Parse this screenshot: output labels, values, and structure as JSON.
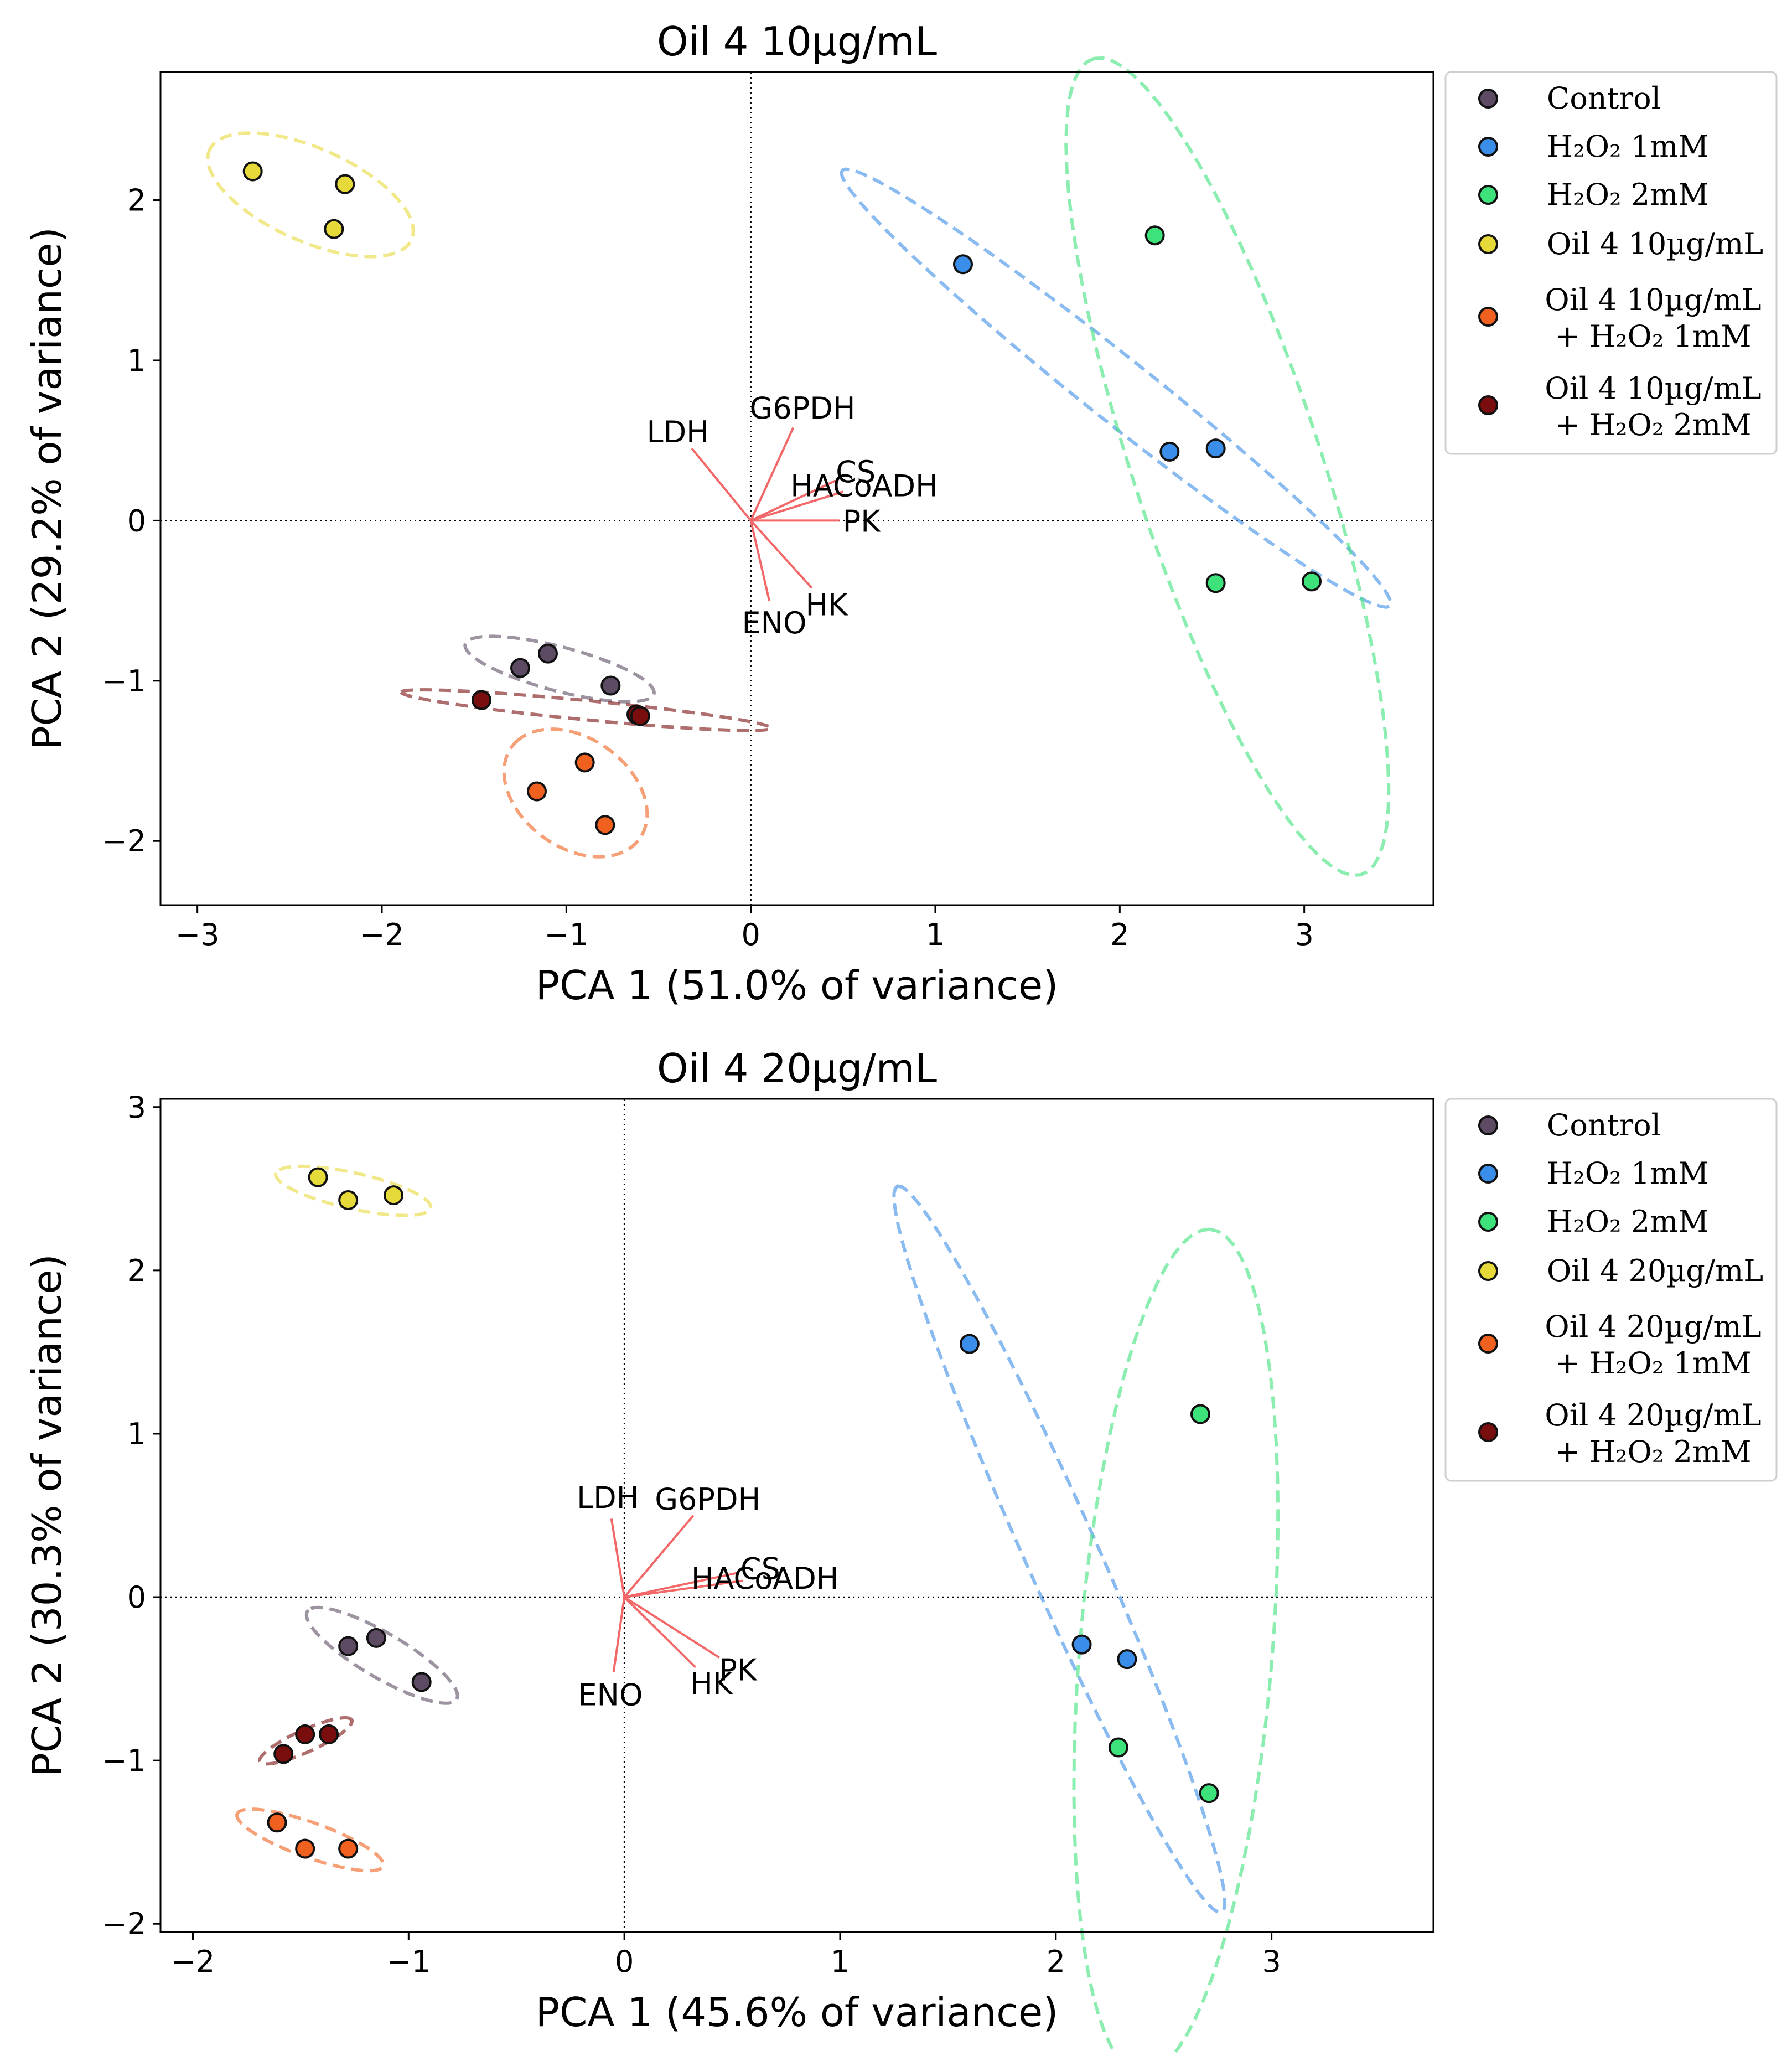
{
  "chart_data": [
    {
      "type": "scatter",
      "title": "Oil 4 10µg/mL",
      "xlabel": "PCA 1 (51.0% of variance)",
      "ylabel": "PCA 2 (29.2% of variance)",
      "xlim": [
        -3.2,
        3.7
      ],
      "ylim": [
        -2.4,
        2.8
      ],
      "xticks": [
        -3,
        -2,
        -1,
        0,
        1,
        2,
        3
      ],
      "yticks": [
        -2,
        -1,
        0,
        1,
        2
      ],
      "series": [
        {
          "name": "Control",
          "color": "#5c4b63",
          "ellipse": true,
          "points": [
            [
              -1.25,
              -0.92
            ],
            [
              -1.1,
              -0.83
            ],
            [
              -0.76,
              -1.03
            ]
          ]
        },
        {
          "name": "H2O2 1mM",
          "color": "#3a8de8",
          "ellipse": true,
          "points": [
            [
              1.15,
              1.6
            ],
            [
              2.27,
              0.43
            ],
            [
              2.52,
              0.45
            ]
          ]
        },
        {
          "name": "H2O2 2mM",
          "color": "#3ee27b",
          "ellipse": true,
          "points": [
            [
              2.19,
              1.78
            ],
            [
              2.52,
              -0.39
            ],
            [
              3.04,
              -0.38
            ]
          ]
        },
        {
          "name": "Oil 4 10µg/mL",
          "color": "#e6d93a",
          "ellipse": true,
          "points": [
            [
              -2.7,
              2.18
            ],
            [
              -2.2,
              2.1
            ],
            [
              -2.26,
              1.82
            ]
          ]
        },
        {
          "name": "Oil 4 10µg/mL + H2O2 1mM",
          "color": "#f0601e",
          "ellipse": true,
          "points": [
            [
              -1.16,
              -1.69
            ],
            [
              -0.9,
              -1.51
            ],
            [
              -0.79,
              -1.9
            ]
          ]
        },
        {
          "name": "Oil 4 10µg/mL + H2O2 2mM",
          "color": "#7a0d0d",
          "ellipse": true,
          "points": [
            [
              -1.46,
              -1.12
            ],
            [
              -0.62,
              -1.21
            ],
            [
              -0.6,
              -1.22
            ]
          ]
        }
      ],
      "loadings": [
        {
          "label": "LDH",
          "x": -0.32,
          "y": 0.45
        },
        {
          "label": "G6PDH",
          "x": 0.23,
          "y": 0.58
        },
        {
          "label": "CS",
          "x": 0.46,
          "y": 0.25
        },
        {
          "label": "HACoADH",
          "x": 0.5,
          "y": 0.18
        },
        {
          "label": "PK",
          "x": 0.48,
          "y": 0.0
        },
        {
          "label": "HK",
          "x": 0.33,
          "y": -0.42
        },
        {
          "label": "ENO",
          "x": 0.1,
          "y": -0.5
        }
      ],
      "legend": [
        {
          "label": "Control"
        },
        {
          "label": "H₂O₂ 1mM"
        },
        {
          "label": "H₂O₂ 2mM"
        },
        {
          "label": "Oil 4 10µg/mL"
        },
        {
          "label": "Oil 4 10µg/mL",
          "label2": "+ H₂O₂ 1mM"
        },
        {
          "label": "Oil 4 10µg/mL",
          "label2": "+ H₂O₂ 2mM"
        }
      ]
    },
    {
      "type": "scatter",
      "title": "Oil 4 20µg/mL",
      "xlabel": "PCA 1 (45.6% of variance)",
      "ylabel": "PCA 2 (30.3% of variance)",
      "xlim": [
        -2.15,
        3.75
      ],
      "ylim": [
        -2.05,
        3.05
      ],
      "xticks": [
        -2,
        -1,
        0,
        1,
        2,
        3
      ],
      "yticks": [
        -2,
        -1,
        0,
        1,
        2,
        3
      ],
      "series": [
        {
          "name": "Control",
          "color": "#5c4b63",
          "ellipse": true,
          "points": [
            [
              -1.28,
              -0.3
            ],
            [
              -1.15,
              -0.25
            ],
            [
              -0.94,
              -0.52
            ]
          ]
        },
        {
          "name": "H2O2 1mM",
          "color": "#3a8de8",
          "ellipse": true,
          "points": [
            [
              1.6,
              1.55
            ],
            [
              2.12,
              -0.29
            ],
            [
              2.33,
              -0.38
            ]
          ]
        },
        {
          "name": "H2O2 2mM",
          "color": "#3ee27b",
          "ellipse": true,
          "points": [
            [
              2.67,
              1.12
            ],
            [
              2.29,
              -0.92
            ],
            [
              2.71,
              -1.2
            ]
          ]
        },
        {
          "name": "Oil 4 20µg/mL",
          "color": "#e6d93a",
          "ellipse": true,
          "points": [
            [
              -1.42,
              2.57
            ],
            [
              -1.28,
              2.43
            ],
            [
              -1.07,
              2.46
            ]
          ]
        },
        {
          "name": "Oil 4 20µg/mL + H2O2 1mM",
          "color": "#f0601e",
          "ellipse": true,
          "points": [
            [
              -1.61,
              -1.38
            ],
            [
              -1.48,
              -1.54
            ],
            [
              -1.28,
              -1.54
            ]
          ]
        },
        {
          "name": "Oil 4 20µg/mL + H2O2 2mM",
          "color": "#7a0d0d",
          "ellipse": true,
          "points": [
            [
              -1.58,
              -0.96
            ],
            [
              -1.48,
              -0.84
            ],
            [
              -1.37,
              -0.84
            ]
          ]
        }
      ],
      "loadings": [
        {
          "label": "LDH",
          "x": -0.06,
          "y": 0.48
        },
        {
          "label": "G6PDH",
          "x": 0.32,
          "y": 0.5
        },
        {
          "label": "CS",
          "x": 0.53,
          "y": 0.15
        },
        {
          "label": "HACoADH",
          "x": 0.55,
          "y": 0.1
        },
        {
          "label": "PK",
          "x": 0.44,
          "y": -0.37
        },
        {
          "label": "HK",
          "x": 0.33,
          "y": -0.43
        },
        {
          "label": "ENO",
          "x": -0.05,
          "y": -0.46
        }
      ],
      "legend": [
        {
          "label": "Control"
        },
        {
          "label": "H₂O₂ 1mM"
        },
        {
          "label": "H₂O₂ 2mM"
        },
        {
          "label": "Oil 4 20µg/mL"
        },
        {
          "label": "Oil 4 20µg/mL",
          "label2": "+ H₂O₂ 1mM"
        },
        {
          "label": "Oil 4 20µg/mL",
          "label2": "+ H₂O₂ 2mM"
        }
      ]
    }
  ]
}
